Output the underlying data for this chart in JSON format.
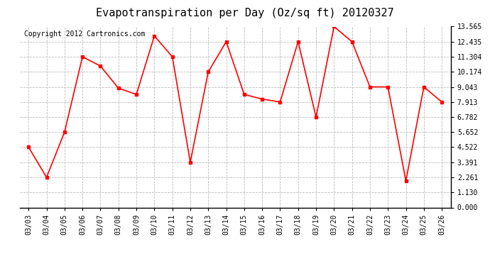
{
  "title": "Evapotranspiration per Day (Oz/sq ft) 20120327",
  "copyright": "Copyright 2012 Cartronics.com",
  "x_labels": [
    "03/03",
    "03/04",
    "03/05",
    "03/06",
    "03/07",
    "03/08",
    "03/09",
    "03/10",
    "03/11",
    "03/12",
    "03/13",
    "03/14",
    "03/15",
    "03/16",
    "03/17",
    "03/18",
    "03/19",
    "03/20",
    "03/21",
    "03/22",
    "03/23",
    "03/24",
    "03/25",
    "03/26"
  ],
  "y_values": [
    4.522,
    2.261,
    5.652,
    11.304,
    10.609,
    8.948,
    8.478,
    12.87,
    11.304,
    3.391,
    10.174,
    12.435,
    8.478,
    8.13,
    7.913,
    12.435,
    6.782,
    13.565,
    12.435,
    9.043,
    9.043,
    2.0,
    9.043,
    7.913
  ],
  "line_color": "#ff0000",
  "marker": "s",
  "marker_size": 2.5,
  "line_width": 1.2,
  "ylim": [
    0,
    13.565
  ],
  "yticks": [
    0.0,
    1.13,
    2.261,
    3.391,
    4.522,
    5.652,
    6.782,
    7.913,
    9.043,
    10.174,
    11.304,
    12.435,
    13.565
  ],
  "background_color": "#ffffff",
  "plot_bg_color": "#ffffff",
  "grid_color": "#bbbbbb",
  "title_fontsize": 11,
  "copyright_fontsize": 7,
  "tick_fontsize": 7
}
